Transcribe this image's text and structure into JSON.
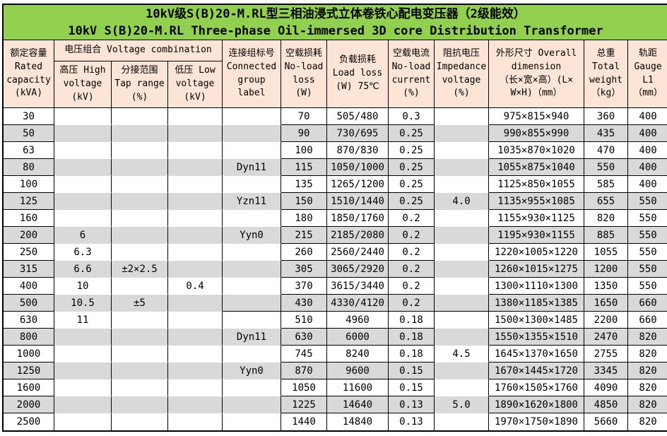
{
  "title": {
    "line1": "10kV级S(B)20-M.RL型三相油浸式立体卷铁心配电变压器（2级能效）",
    "line2": "10kV S(B)20-M.RL Three-phase Oil-immersed 3D core Distribution Transformer"
  },
  "colors": {
    "title_bg": "#92d050",
    "header_bg": "#fce4d6",
    "stripe_bg": "#d9d9d9",
    "border_color": "#000000"
  },
  "table": {
    "headers": {
      "capacity": "额定容量\nRated\ncapacity\n(kVA)",
      "voltage_combination": "电压组合 Voltage combination",
      "high_voltage": "高压 High\nvoltage\n(kV)",
      "tap_range": "分接范围\nTap range\n(%)",
      "low_voltage": "低压 Low\nvoltage\n(kV)",
      "connected_group": "连接组标号\nConnected\ngroup\nlabel",
      "no_load_loss": "空载损耗\nNo-load\nloss\n(W)",
      "load_loss": "负载损耗\nLoad loss\n(W) 75℃",
      "no_load_current": "空载电流\nNo-load\ncurrent\n(%)",
      "impedance_voltage": "阻抗电压\nImpedance\nvoltage\n(%)",
      "overall_dimension": "外形尺寸 Overall\ndimension\n（长×宽×高）(L×\nW×H)（mm）",
      "total_weight": "总重\nTotal\nweight\n（kg）",
      "gauge": "轨距\nGauge\nL1\n（mm）"
    },
    "rows": [
      {
        "capacity": "30",
        "high_voltage": "",
        "tap_range": "",
        "low_voltage": "",
        "connected_group": "",
        "no_load_loss": "70",
        "load_loss": "505/480",
        "no_load_current": "0.3",
        "impedance_voltage": "",
        "overall_dimension": "975×815×940",
        "total_weight": "360",
        "gauge": "400"
      },
      {
        "capacity": "50",
        "high_voltage": "",
        "tap_range": "",
        "low_voltage": "",
        "connected_group": "",
        "no_load_loss": "90",
        "load_loss": "730/695",
        "no_load_current": "0.25",
        "impedance_voltage": "",
        "overall_dimension": "990×855×990",
        "total_weight": "435",
        "gauge": "400"
      },
      {
        "capacity": "63",
        "high_voltage": "",
        "tap_range": "",
        "low_voltage": "",
        "connected_group": "",
        "no_load_loss": "100",
        "load_loss": "870/830",
        "no_load_current": "0.25",
        "impedance_voltage": "",
        "overall_dimension": "1035×870×1020",
        "total_weight": "470",
        "gauge": "400"
      },
      {
        "capacity": "80",
        "high_voltage": "",
        "tap_range": "",
        "low_voltage": "",
        "connected_group": "Dyn11",
        "no_load_loss": "115",
        "load_loss": "1050/1000",
        "no_load_current": "0.25",
        "impedance_voltage": "",
        "overall_dimension": "1055×875×1040",
        "total_weight": "550",
        "gauge": "400"
      },
      {
        "capacity": "100",
        "high_voltage": "",
        "tap_range": "",
        "low_voltage": "",
        "connected_group": "",
        "no_load_loss": "135",
        "load_loss": "1265/1200",
        "no_load_current": "0.25",
        "impedance_voltage": "",
        "overall_dimension": "1125×850×1055",
        "total_weight": "585",
        "gauge": "400"
      },
      {
        "capacity": "125",
        "high_voltage": "",
        "tap_range": "",
        "low_voltage": "",
        "connected_group": "Yzn11",
        "no_load_loss": "150",
        "load_loss": "1510/1440",
        "no_load_current": "0.25",
        "impedance_voltage": "4.0",
        "overall_dimension": "1135×955×1085",
        "total_weight": "655",
        "gauge": "550"
      },
      {
        "capacity": "160",
        "high_voltage": "",
        "tap_range": "",
        "low_voltage": "",
        "connected_group": "",
        "no_load_loss": "180",
        "load_loss": "1850/1760",
        "no_load_current": "0.2",
        "impedance_voltage": "",
        "overall_dimension": "1155×930×1125",
        "total_weight": "820",
        "gauge": "550"
      },
      {
        "capacity": "200",
        "high_voltage": "6",
        "tap_range": "",
        "low_voltage": "",
        "connected_group": "Yyn0",
        "no_load_loss": "215",
        "load_loss": "2185/2080",
        "no_load_current": "0.2",
        "impedance_voltage": "",
        "overall_dimension": "1195×930×1155",
        "total_weight": "885",
        "gauge": "550"
      },
      {
        "capacity": "250",
        "high_voltage": "6.3",
        "tap_range": "",
        "low_voltage": "",
        "connected_group": "",
        "no_load_loss": "260",
        "load_loss": "2560/2440",
        "no_load_current": "0.2",
        "impedance_voltage": "",
        "overall_dimension": "1220×1005×1220",
        "total_weight": "1055",
        "gauge": "550"
      },
      {
        "capacity": "315",
        "high_voltage": "6.6",
        "tap_range": "±2×2.5",
        "low_voltage": "",
        "connected_group": "",
        "no_load_loss": "305",
        "load_loss": "3065/2920",
        "no_load_current": "0.2",
        "impedance_voltage": "",
        "overall_dimension": "1260×1015×1275",
        "total_weight": "1200",
        "gauge": "550"
      },
      {
        "capacity": "400",
        "high_voltage": "10",
        "tap_range": "",
        "low_voltage": "0.4",
        "connected_group": "",
        "no_load_loss": "370",
        "load_loss": "3615/3440",
        "no_load_current": "0.2",
        "impedance_voltage": "",
        "overall_dimension": "1300×1110×1300",
        "total_weight": "1350",
        "gauge": "550"
      },
      {
        "capacity": "500",
        "high_voltage": "10.5",
        "tap_range": "±5",
        "low_voltage": "",
        "connected_group": "",
        "no_load_loss": "430",
        "load_loss": "4330/4120",
        "no_load_current": "0.2",
        "impedance_voltage": "",
        "overall_dimension": "1380×1185×1385",
        "total_weight": "1650",
        "gauge": "660"
      },
      {
        "capacity": "630",
        "high_voltage": "11",
        "tap_range": "",
        "low_voltage": "",
        "connected_group": "",
        "no_load_loss": "510",
        "load_loss": "4960",
        "no_load_current": "0.18",
        "impedance_voltage": "",
        "overall_dimension": "1500×1300×1485",
        "total_weight": "2200",
        "gauge": "660"
      },
      {
        "capacity": "800",
        "high_voltage": "",
        "tap_range": "",
        "low_voltage": "",
        "connected_group": "Dyn11",
        "no_load_loss": "630",
        "load_loss": "6000",
        "no_load_current": "0.18",
        "impedance_voltage": "",
        "overall_dimension": "1550×1355×1510",
        "total_weight": "2470",
        "gauge": "820"
      },
      {
        "capacity": "1000",
        "high_voltage": "",
        "tap_range": "",
        "low_voltage": "",
        "connected_group": "",
        "no_load_loss": "745",
        "load_loss": "8240",
        "no_load_current": "0.18",
        "impedance_voltage": "4.5",
        "overall_dimension": "1645×1370×1650",
        "total_weight": "2755",
        "gauge": "820"
      },
      {
        "capacity": "1250",
        "high_voltage": "",
        "tap_range": "",
        "low_voltage": "",
        "connected_group": "Yyn0",
        "no_load_loss": "870",
        "load_loss": "9600",
        "no_load_current": "0.15",
        "impedance_voltage": "",
        "overall_dimension": "1670×1445×1720",
        "total_weight": "3345",
        "gauge": "820"
      },
      {
        "capacity": "1600",
        "high_voltage": "",
        "tap_range": "",
        "low_voltage": "",
        "connected_group": "",
        "no_load_loss": "1050",
        "load_loss": "11600",
        "no_load_current": "0.15",
        "impedance_voltage": "",
        "overall_dimension": "1760×1505×1760",
        "total_weight": "4090",
        "gauge": "820"
      },
      {
        "capacity": "2000",
        "high_voltage": "",
        "tap_range": "",
        "low_voltage": "",
        "connected_group": "",
        "no_load_loss": "1225",
        "load_loss": "14640",
        "no_load_current": "0.13",
        "impedance_voltage": "5.0",
        "overall_dimension": "1890×1620×1800",
        "total_weight": "4850",
        "gauge": "820"
      },
      {
        "capacity": "2500",
        "high_voltage": "",
        "tap_range": "",
        "low_voltage": "",
        "connected_group": "",
        "no_load_loss": "1440",
        "load_loss": "14840",
        "no_load_current": "0.13",
        "impedance_voltage": "",
        "overall_dimension": "1970×1750×1890",
        "total_weight": "5660",
        "gauge": "820"
      }
    ]
  }
}
